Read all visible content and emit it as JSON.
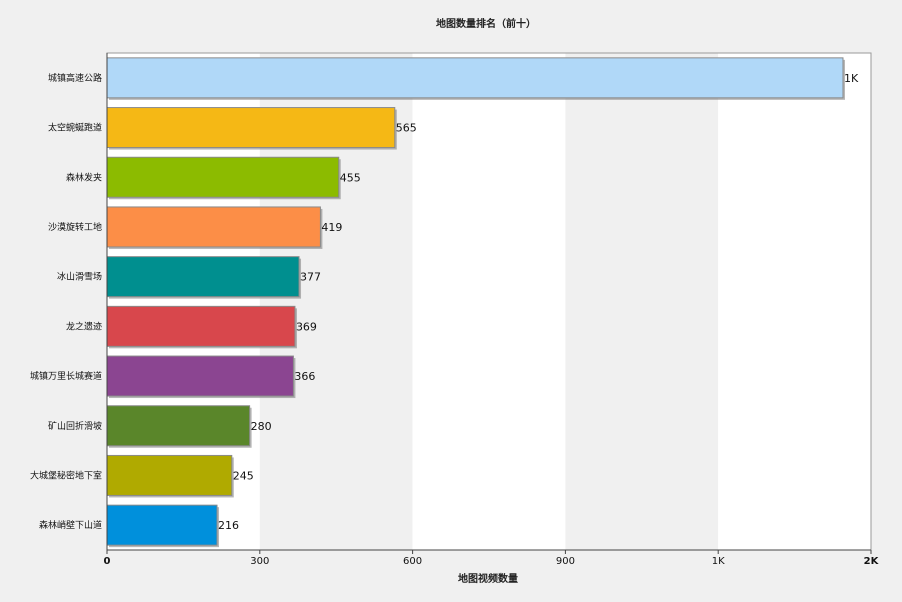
{
  "chart_data": {
    "type": "bar",
    "orientation": "horizontal",
    "title": "地图数量排名（前十）",
    "xlabel": "地图视频数量",
    "ylabel": "",
    "xlim": [
      0,
      1500
    ],
    "x_ticks": [
      {
        "value": 0,
        "label": "0"
      },
      {
        "value": 300,
        "label": "300"
      },
      {
        "value": 600,
        "label": "600"
      },
      {
        "value": 900,
        "label": "900"
      },
      {
        "value": 1200,
        "label": "1K"
      },
      {
        "value": 1500,
        "label": "2K"
      }
    ],
    "categories": [
      "城镇高速公路",
      "太空蜿蜒跑道",
      "森林发夹",
      "沙漠旋转工地",
      "冰山滑雪场",
      "龙之遗迹",
      "城镇万里长城赛道",
      "矿山回折滑坡",
      "大城堡秘密地下室",
      "森林峭壁下山道"
    ],
    "values": [
      1445,
      565,
      455,
      419,
      377,
      369,
      366,
      280,
      245,
      216
    ],
    "data_labels": [
      "1K",
      "565",
      "455",
      "419",
      "377",
      "369",
      "366",
      "280",
      "245",
      "216"
    ],
    "colors": [
      "#b0d8f8",
      "#f5b815",
      "#8cbb00",
      "#fc8e47",
      "#008f8f",
      "#d8474c",
      "#8b4591",
      "#5a862a",
      "#b0aa00",
      "#0090dc"
    ],
    "grid": "alternating vertical bands",
    "legend": "none"
  }
}
